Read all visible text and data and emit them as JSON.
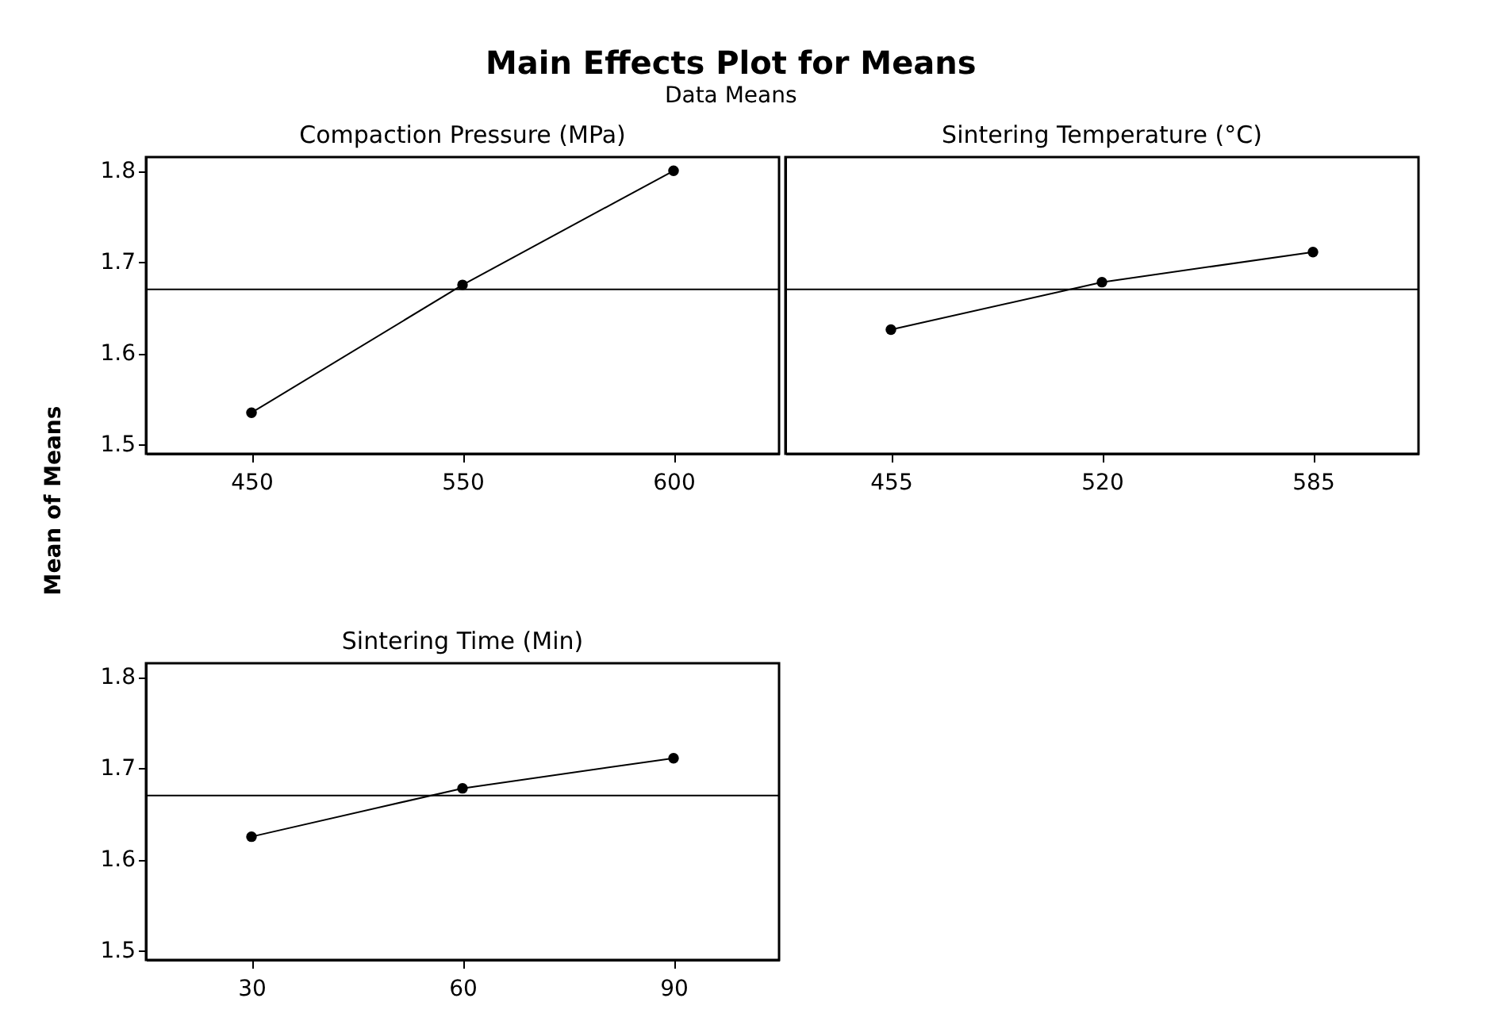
{
  "chart_data": [
    {
      "type": "line",
      "title": "Compaction Pressure (MPa)",
      "ylabel": "Mean of Means",
      "annotations": [
        "Main Effects Plot for Means",
        "Data Means"
      ],
      "categories": [
        "450",
        "550",
        "600"
      ],
      "values": [
        1.535,
        1.675,
        1.8
      ],
      "color": "#000000",
      "marker": "circle",
      "ylim": [
        1.49,
        1.815
      ],
      "yticks": [
        1.5,
        1.6,
        1.7,
        1.8
      ],
      "ref_lines": [
        {
          "axis": "y",
          "value": 1.67
        }
      ]
    },
    {
      "type": "line",
      "title": "Sintering Temperature (°C)",
      "categories": [
        "455",
        "520",
        "585"
      ],
      "values": [
        1.626,
        1.678,
        1.711
      ],
      "color": "#000000",
      "marker": "circle",
      "ylim": [
        1.49,
        1.815
      ],
      "yticks": [
        1.5,
        1.6,
        1.7,
        1.8
      ],
      "ref_lines": [
        {
          "axis": "y",
          "value": 1.67
        }
      ],
      "tick_labels": "x"
    },
    {
      "type": "line",
      "title": "Sintering Time (Min)",
      "categories": [
        "30",
        "60",
        "90"
      ],
      "values": [
        1.625,
        1.678,
        1.711
      ],
      "color": "#000000",
      "marker": "circle",
      "ylim": [
        1.49,
        1.815
      ],
      "yticks": [
        1.5,
        1.6,
        1.7,
        1.8
      ],
      "ref_lines": [
        {
          "axis": "y",
          "value": 1.67
        }
      ]
    }
  ]
}
